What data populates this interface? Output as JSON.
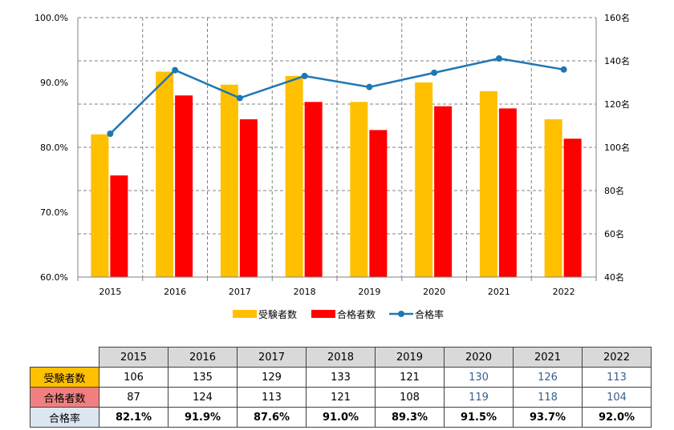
{
  "chart_data": {
    "type": "bar+line",
    "categories": [
      "2015",
      "2016",
      "2017",
      "2018",
      "2019",
      "2020",
      "2021",
      "2022"
    ],
    "left_axis": {
      "min": 60,
      "max": 100,
      "ticks": [
        "60.0%",
        "70.0%",
        "80.0%",
        "90.0%",
        "100.0%"
      ]
    },
    "right_axis": {
      "min": 40,
      "max": 160,
      "ticks": [
        "40名",
        "60名",
        "80名",
        "100名",
        "120名",
        "140名",
        "160名"
      ]
    },
    "series": [
      {
        "name": "受験者数",
        "type": "bar",
        "axis": "right",
        "color": "#ffc000",
        "values": [
          106,
          135,
          129,
          133,
          121,
          130,
          126,
          113
        ]
      },
      {
        "name": "合格者数",
        "type": "bar",
        "axis": "right",
        "color": "#ff0000",
        "values": [
          87,
          124,
          113,
          121,
          108,
          119,
          118,
          104
        ]
      },
      {
        "name": "合格率",
        "type": "line",
        "axis": "left",
        "color": "#1f77b4",
        "values": [
          82.1,
          91.9,
          87.6,
          91.0,
          89.3,
          91.5,
          93.7,
          92.0
        ]
      }
    ],
    "grid": true,
    "legend": "bottom"
  },
  "table": {
    "years": [
      "2015",
      "2016",
      "2017",
      "2018",
      "2019",
      "2020",
      "2021",
      "2022"
    ],
    "rows": [
      {
        "label": "受験者数",
        "bg": "#ffc000",
        "values": [
          "106",
          "135",
          "129",
          "133",
          "121",
          "130",
          "126",
          "113"
        ]
      },
      {
        "label": "合格者数",
        "bg": "#f08080",
        "values": [
          "87",
          "124",
          "113",
          "121",
          "108",
          "119",
          "118",
          "104"
        ]
      },
      {
        "label": "合格率",
        "bg": "#dce6f1",
        "values": [
          "82.1%",
          "91.9%",
          "87.6%",
          "91.0%",
          "89.3%",
          "91.5%",
          "93.7%",
          "92.0%"
        ]
      }
    ]
  }
}
